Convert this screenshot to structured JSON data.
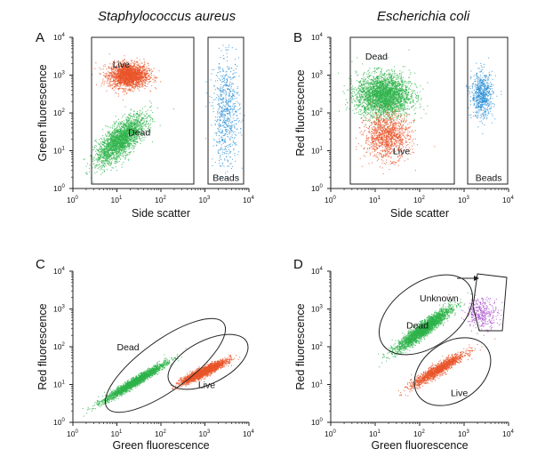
{
  "species": {
    "left": "Staphylococcus aureus",
    "right": "Escherichia coli"
  },
  "tick_labels": [
    "10",
    "10",
    "10",
    "10",
    "10"
  ],
  "tick_exponents": [
    "0",
    "1",
    "2",
    "3",
    "4"
  ],
  "chart_data": [
    {
      "panel": "A",
      "type": "scatter",
      "xlabel": "Side scatter",
      "ylabel": "Green fluorescence",
      "xscale": "log",
      "yscale": "log",
      "xlim": [
        1,
        10000
      ],
      "ylim": [
        1,
        10000
      ],
      "series": [
        {
          "name": "Live",
          "color": "#e8542a",
          "cloud": {
            "center": [
              18,
              1000
            ],
            "spread_log": [
              0.22,
              0.16
            ],
            "n": 2200
          }
        },
        {
          "name": "Dead",
          "color": "#2db34a",
          "cloud": {
            "center": [
              12,
              20
            ],
            "spread_log": [
              0.28,
              0.22
            ],
            "slope": 0.85,
            "n": 2400
          }
        },
        {
          "name": "Beads",
          "color": "#2b8fd6",
          "cloud": {
            "center": [
              3000,
              100
            ],
            "spread_log": [
              0.15,
              0.7
            ],
            "n": 700
          }
        }
      ],
      "annotations": [
        "Live",
        "Dead",
        "Beads"
      ],
      "gates": [
        {
          "shape": "rect",
          "x": [
            2.5,
            700
          ],
          "y": [
            1,
            10000
          ]
        },
        {
          "shape": "rect",
          "x": [
            1000,
            8000
          ],
          "y": [
            1,
            10000
          ],
          "label": "Beads"
        }
      ]
    },
    {
      "panel": "B",
      "type": "scatter",
      "xlabel": "Side scatter",
      "ylabel": "Red fluorescence",
      "xscale": "log",
      "yscale": "log",
      "xlim": [
        1,
        10000
      ],
      "ylim": [
        1,
        10000
      ],
      "series": [
        {
          "name": "Dead",
          "color": "#2db34a",
          "cloud": {
            "center": [
              15,
              300
            ],
            "spread_log": [
              0.3,
              0.28
            ],
            "n": 3000
          }
        },
        {
          "name": "Live",
          "color": "#e8542a",
          "cloud": {
            "center": [
              18,
              25
            ],
            "spread_log": [
              0.25,
              0.3
            ],
            "n": 1200
          }
        },
        {
          "name": "Beads",
          "color": "#2b8fd6",
          "cloud": {
            "center": [
              2500,
              300
            ],
            "spread_log": [
              0.12,
              0.3
            ],
            "n": 700
          }
        }
      ],
      "annotations": [
        "Dead",
        "Live",
        "Beads"
      ],
      "gates": [
        {
          "shape": "rect",
          "x": [
            2.5,
            600
          ],
          "y": [
            1.5,
            10000
          ]
        },
        {
          "shape": "rect",
          "x": [
            1000,
            8000
          ],
          "y": [
            1.5,
            10000
          ],
          "label": "Beads"
        }
      ]
    },
    {
      "panel": "C",
      "type": "scatter",
      "xlabel": "Green fluorescence",
      "ylabel": "Red fluorescence",
      "xscale": "log",
      "yscale": "log",
      "xlim": [
        1,
        10000
      ],
      "ylim": [
        1,
        10000
      ],
      "series": [
        {
          "name": "Dead",
          "color": "#2db34a",
          "cloud": {
            "center": [
              25,
              12
            ],
            "spread_log": [
              0.35,
              0.06
            ],
            "slope": 0.7,
            "n": 2400
          }
        },
        {
          "name": "Live",
          "color": "#e8542a",
          "cloud": {
            "center": [
              900,
              22
            ],
            "spread_log": [
              0.25,
              0.06
            ],
            "slope": 0.55,
            "n": 2400
          }
        }
      ],
      "annotations": [
        "Dead",
        "Live"
      ],
      "gates": [
        {
          "shape": "ellipse",
          "label": "Dead"
        },
        {
          "shape": "ellipse",
          "label": "Live"
        }
      ]
    },
    {
      "panel": "D",
      "type": "scatter",
      "xlabel": "Green fluorescence",
      "ylabel": "Red fluorescence",
      "xscale": "log",
      "yscale": "log",
      "xlim": [
        1,
        10000
      ],
      "ylim": [
        1,
        10000
      ],
      "series": [
        {
          "name": "Dead",
          "color": "#2db34a",
          "cloud": {
            "center": [
              120,
              300
            ],
            "spread_log": [
              0.3,
              0.1
            ],
            "slope": 0.85,
            "n": 2800
          }
        },
        {
          "name": "Live",
          "color": "#e8542a",
          "cloud": {
            "center": [
              250,
              25
            ],
            "spread_log": [
              0.3,
              0.08
            ],
            "slope": 0.7,
            "n": 1500
          }
        },
        {
          "name": "Unknown",
          "color": "#a64ac9",
          "cloud": {
            "center": [
              2500,
              800
            ],
            "spread_log": [
              0.18,
              0.2
            ],
            "n": 350
          }
        }
      ],
      "annotations": [
        "Dead",
        "Live",
        "Unknown"
      ],
      "gates": [
        {
          "shape": "ellipse",
          "label": "Dead"
        },
        {
          "shape": "ellipse",
          "label": "Live"
        },
        {
          "shape": "polygon",
          "label": "Unknown"
        }
      ]
    }
  ]
}
